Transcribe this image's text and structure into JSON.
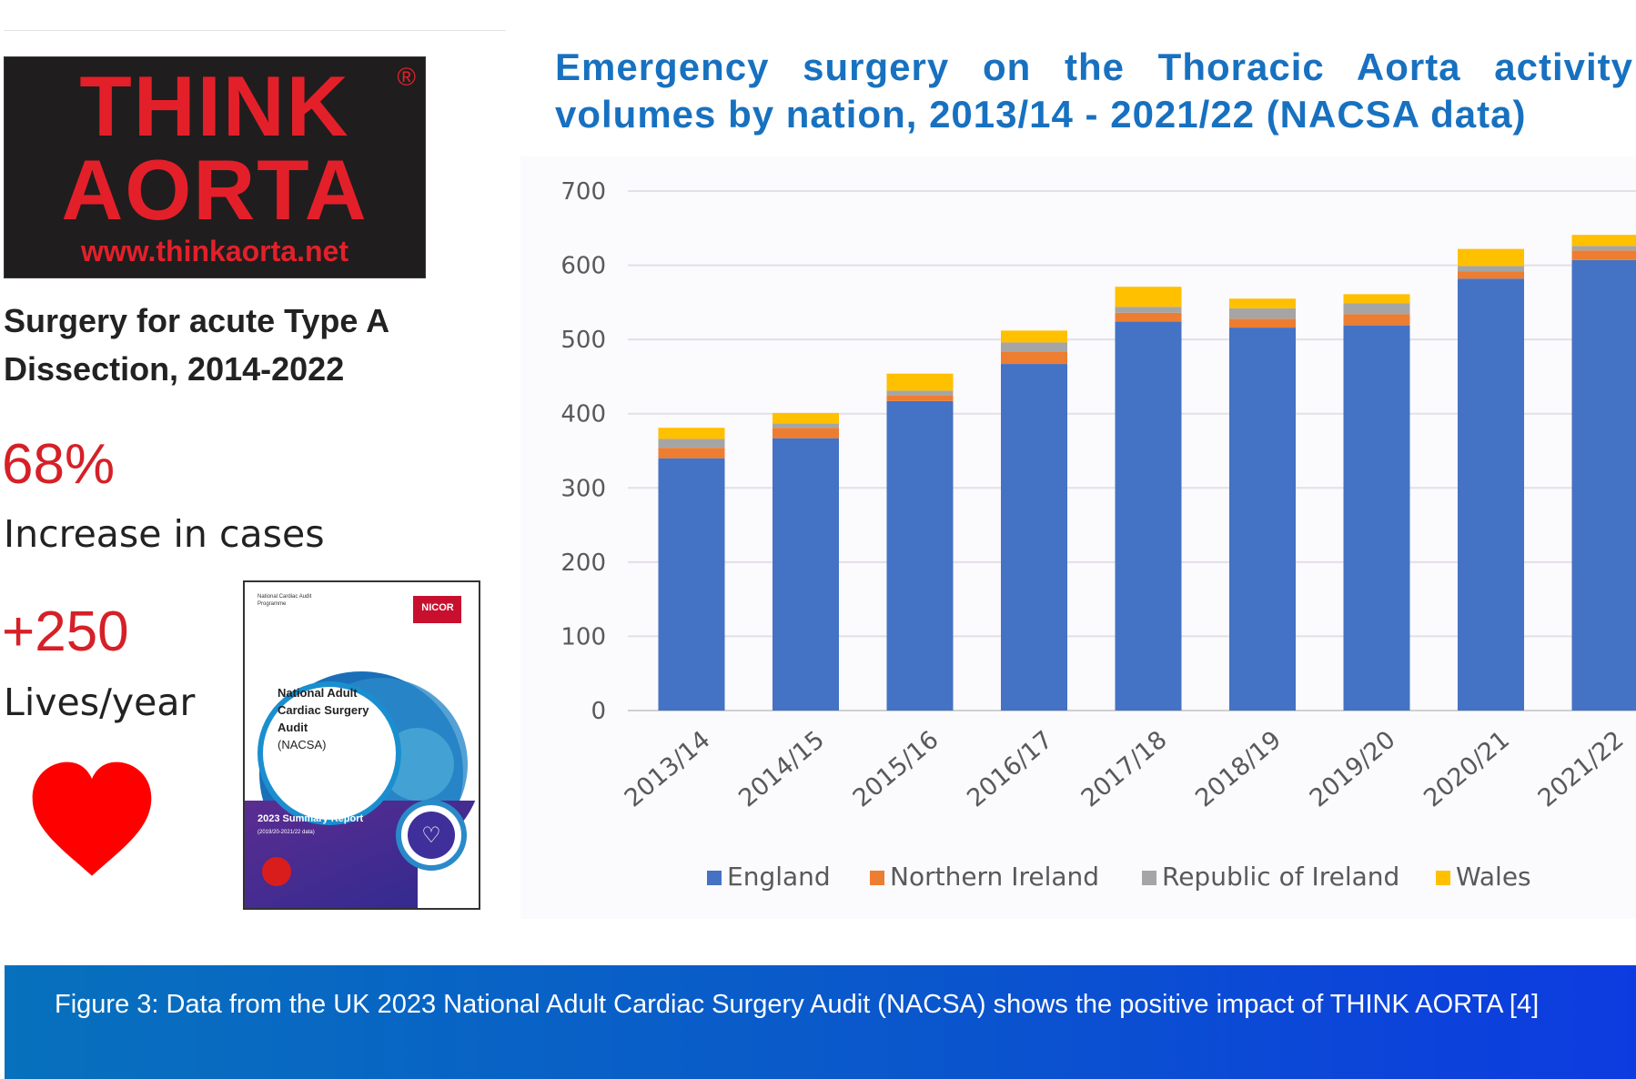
{
  "logo": {
    "line1": "THINK",
    "line2": "AORTA",
    "url": "www.thinkaorta.net",
    "registered": "®",
    "color": "#e3202a"
  },
  "subtitle": "Surgery for acute Type A Dissection, 2014-2022",
  "stats": [
    {
      "value": "68%",
      "label": "Increase in cases"
    },
    {
      "value": "+250",
      "label": "Lives/year"
    }
  ],
  "heart": {
    "icon": "heart-icon",
    "color": "#ff0000"
  },
  "report": {
    "program": "National Cardiac Audit Programme",
    "brand": "NICOR",
    "title_l1": "National Adult",
    "title_l2": "Cardiac Surgery",
    "title_l3": "Audit",
    "title_l4": "(NACSA)",
    "summary": "2023 Summary Report",
    "subsummary": "(2019/20-2021/22 data)"
  },
  "caption": "Figure 3: Data from the UK 2023 National Adult Cardiac Surgery Audit (NACSA) shows the positive impact of THINK AORTA [4]",
  "chart_data": {
    "type": "bar",
    "stacked": true,
    "title_l1": "Emergency surgery on the Thoracic Aorta activity",
    "title_l2": "volumes by nation, 2013/14 - 2021/22 (NACSA data)",
    "categories": [
      "2013/14",
      "2014/15",
      "2015/16",
      "2016/17",
      "2017/18",
      "2018/19",
      "2019/20",
      "2020/21",
      "2021/22"
    ],
    "series": [
      {
        "name": "England",
        "color": "#4472c4",
        "values": [
          340,
          367,
          417,
          467,
          524,
          516,
          519,
          582,
          607
        ]
      },
      {
        "name": "Northern Ireland",
        "color": "#ed7d31",
        "values": [
          14,
          14,
          8,
          17,
          12,
          12,
          15,
          10,
          13
        ]
      },
      {
        "name": "Republic of Ireland",
        "color": "#a5a5a5",
        "values": [
          12,
          6,
          6,
          12,
          8,
          14,
          15,
          7,
          6
        ]
      },
      {
        "name": "Wales",
        "color": "#ffc000",
        "values": [
          15,
          14,
          23,
          16,
          27,
          13,
          12,
          23,
          15
        ]
      }
    ],
    "ylim": [
      0,
      700
    ],
    "yticks": [
      "0",
      "100",
      "200",
      "300",
      "400",
      "500",
      "600",
      "700"
    ],
    "legend_position": "bottom",
    "grid": true
  }
}
